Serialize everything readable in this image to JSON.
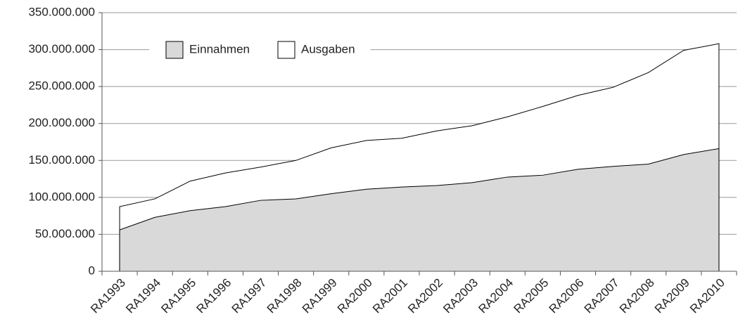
{
  "chart_data": {
    "type": "area",
    "categories": [
      "RA1993",
      "RA1994",
      "RA1995",
      "RA1996",
      "RA1997",
      "RA1998",
      "RA1999",
      "RA2000",
      "RA2001",
      "RA2002",
      "RA2003",
      "RA2004",
      "RA2005",
      "RA2006",
      "RA2007",
      "RA2008",
      "RA2009",
      "RA2010"
    ],
    "series": [
      {
        "name": "Ausgaben",
        "color": "#ffffff",
        "values": [
          87500000,
          98000000,
          122000000,
          133000000,
          141000000,
          150000000,
          167000000,
          177000000,
          180000000,
          190000000,
          197000000,
          209000000,
          223000000,
          238000000,
          249000000,
          269000000,
          299000000,
          308000000
        ]
      },
      {
        "name": "Einnahmen",
        "color": "#d9d9d9",
        "values": [
          56000000,
          73000000,
          82000000,
          87500000,
          96000000,
          98000000,
          105000000,
          111000000,
          114000000,
          116000000,
          120000000,
          127500000,
          130000000,
          138000000,
          142000000,
          145000000,
          158000000,
          166000000
        ]
      }
    ],
    "legend_order": [
      "Einnahmen",
      "Ausgaben"
    ],
    "legend": "top",
    "ylim": [
      0,
      350000000
    ],
    "yticks": [
      0,
      {
        "value": 50000000,
        "label": "50.000.000"
      },
      {
        "value": 100000000,
        "label": "100.000.000"
      },
      {
        "value": 150000000,
        "label": "150.000.000"
      },
      {
        "value": 200000000,
        "label": "200.000.000"
      },
      {
        "value": 250000000,
        "label": "250.000.000"
      },
      {
        "value": 300000000,
        "label": "300.000.000"
      },
      {
        "value": 350000000,
        "label": "350.000.000"
      }
    ],
    "grid": true
  }
}
